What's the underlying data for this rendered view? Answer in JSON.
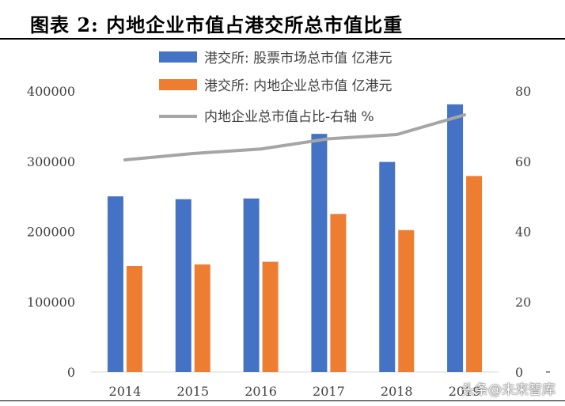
{
  "title": "图表 2:  内地企业市值占港交所总市值比重",
  "watermark": "头条@未来智库",
  "colors": {
    "blue": "#4472C4",
    "orange": "#ED7D31",
    "gray": "#A5A5A5",
    "axis": "#D9D9D9"
  },
  "chart_data": {
    "type": "bar",
    "categories": [
      "2014",
      "2015",
      "2016",
      "2017",
      "2018",
      "2019"
    ],
    "series": [
      {
        "name": "港交所: 股票市场总市值  亿港元",
        "type": "bar",
        "axis": "left",
        "values": [
          250000,
          246000,
          247000,
          339000,
          299000,
          381000
        ]
      },
      {
        "name": "港交所: 内地企业总市值  亿港元",
        "type": "bar",
        "axis": "left",
        "values": [
          151000,
          153000,
          157000,
          225000,
          202000,
          279000
        ]
      },
      {
        "name": "内地企业总市值占比-右轴  %",
        "type": "line",
        "axis": "right",
        "values": [
          60.4,
          62.2,
          63.5,
          66.4,
          67.6,
          73.2
        ]
      }
    ],
    "ylim_left": [
      0,
      400000
    ],
    "yticks_left": [
      "0",
      "100000",
      "200000",
      "300000",
      "400000"
    ],
    "ylim_right": [
      0,
      80
    ],
    "yticks_right": [
      "0",
      "20",
      "40",
      "60",
      "80"
    ],
    "grid": false,
    "legend_position": "top-center"
  }
}
